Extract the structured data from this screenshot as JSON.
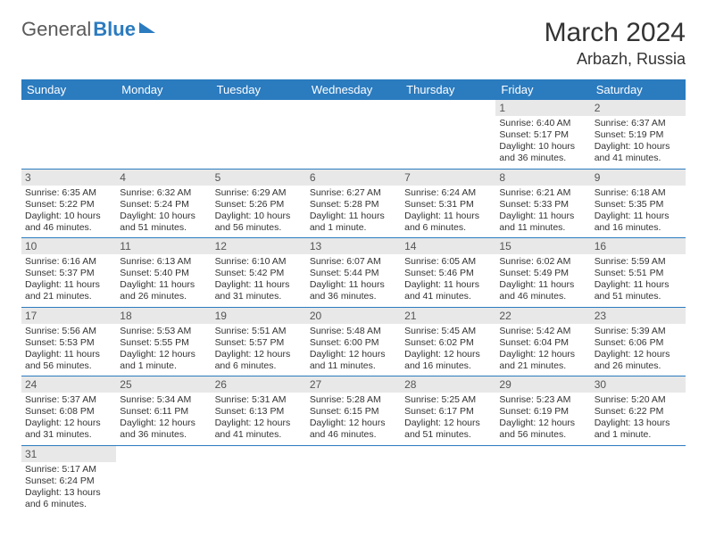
{
  "logo": {
    "part1": "General",
    "part2": "Blue"
  },
  "header": {
    "title": "March 2024",
    "location": "Arbazh, Russia"
  },
  "colors": {
    "header_bg": "#2b7bbf",
    "header_text": "#ffffff",
    "daynum_bg": "#e8e8e8",
    "border": "#2b7bbf",
    "text": "#333333",
    "logo_gray": "#5a5a5a",
    "logo_blue": "#2b7bbf"
  },
  "weekdays": [
    "Sunday",
    "Monday",
    "Tuesday",
    "Wednesday",
    "Thursday",
    "Friday",
    "Saturday"
  ],
  "weeks": [
    [
      null,
      null,
      null,
      null,
      null,
      {
        "n": "1",
        "sr": "Sunrise: 6:40 AM",
        "ss": "Sunset: 5:17 PM",
        "dl": "Daylight: 10 hours and 36 minutes."
      },
      {
        "n": "2",
        "sr": "Sunrise: 6:37 AM",
        "ss": "Sunset: 5:19 PM",
        "dl": "Daylight: 10 hours and 41 minutes."
      }
    ],
    [
      {
        "n": "3",
        "sr": "Sunrise: 6:35 AM",
        "ss": "Sunset: 5:22 PM",
        "dl": "Daylight: 10 hours and 46 minutes."
      },
      {
        "n": "4",
        "sr": "Sunrise: 6:32 AM",
        "ss": "Sunset: 5:24 PM",
        "dl": "Daylight: 10 hours and 51 minutes."
      },
      {
        "n": "5",
        "sr": "Sunrise: 6:29 AM",
        "ss": "Sunset: 5:26 PM",
        "dl": "Daylight: 10 hours and 56 minutes."
      },
      {
        "n": "6",
        "sr": "Sunrise: 6:27 AM",
        "ss": "Sunset: 5:28 PM",
        "dl": "Daylight: 11 hours and 1 minute."
      },
      {
        "n": "7",
        "sr": "Sunrise: 6:24 AM",
        "ss": "Sunset: 5:31 PM",
        "dl": "Daylight: 11 hours and 6 minutes."
      },
      {
        "n": "8",
        "sr": "Sunrise: 6:21 AM",
        "ss": "Sunset: 5:33 PM",
        "dl": "Daylight: 11 hours and 11 minutes."
      },
      {
        "n": "9",
        "sr": "Sunrise: 6:18 AM",
        "ss": "Sunset: 5:35 PM",
        "dl": "Daylight: 11 hours and 16 minutes."
      }
    ],
    [
      {
        "n": "10",
        "sr": "Sunrise: 6:16 AM",
        "ss": "Sunset: 5:37 PM",
        "dl": "Daylight: 11 hours and 21 minutes."
      },
      {
        "n": "11",
        "sr": "Sunrise: 6:13 AM",
        "ss": "Sunset: 5:40 PM",
        "dl": "Daylight: 11 hours and 26 minutes."
      },
      {
        "n": "12",
        "sr": "Sunrise: 6:10 AM",
        "ss": "Sunset: 5:42 PM",
        "dl": "Daylight: 11 hours and 31 minutes."
      },
      {
        "n": "13",
        "sr": "Sunrise: 6:07 AM",
        "ss": "Sunset: 5:44 PM",
        "dl": "Daylight: 11 hours and 36 minutes."
      },
      {
        "n": "14",
        "sr": "Sunrise: 6:05 AM",
        "ss": "Sunset: 5:46 PM",
        "dl": "Daylight: 11 hours and 41 minutes."
      },
      {
        "n": "15",
        "sr": "Sunrise: 6:02 AM",
        "ss": "Sunset: 5:49 PM",
        "dl": "Daylight: 11 hours and 46 minutes."
      },
      {
        "n": "16",
        "sr": "Sunrise: 5:59 AM",
        "ss": "Sunset: 5:51 PM",
        "dl": "Daylight: 11 hours and 51 minutes."
      }
    ],
    [
      {
        "n": "17",
        "sr": "Sunrise: 5:56 AM",
        "ss": "Sunset: 5:53 PM",
        "dl": "Daylight: 11 hours and 56 minutes."
      },
      {
        "n": "18",
        "sr": "Sunrise: 5:53 AM",
        "ss": "Sunset: 5:55 PM",
        "dl": "Daylight: 12 hours and 1 minute."
      },
      {
        "n": "19",
        "sr": "Sunrise: 5:51 AM",
        "ss": "Sunset: 5:57 PM",
        "dl": "Daylight: 12 hours and 6 minutes."
      },
      {
        "n": "20",
        "sr": "Sunrise: 5:48 AM",
        "ss": "Sunset: 6:00 PM",
        "dl": "Daylight: 12 hours and 11 minutes."
      },
      {
        "n": "21",
        "sr": "Sunrise: 5:45 AM",
        "ss": "Sunset: 6:02 PM",
        "dl": "Daylight: 12 hours and 16 minutes."
      },
      {
        "n": "22",
        "sr": "Sunrise: 5:42 AM",
        "ss": "Sunset: 6:04 PM",
        "dl": "Daylight: 12 hours and 21 minutes."
      },
      {
        "n": "23",
        "sr": "Sunrise: 5:39 AM",
        "ss": "Sunset: 6:06 PM",
        "dl": "Daylight: 12 hours and 26 minutes."
      }
    ],
    [
      {
        "n": "24",
        "sr": "Sunrise: 5:37 AM",
        "ss": "Sunset: 6:08 PM",
        "dl": "Daylight: 12 hours and 31 minutes."
      },
      {
        "n": "25",
        "sr": "Sunrise: 5:34 AM",
        "ss": "Sunset: 6:11 PM",
        "dl": "Daylight: 12 hours and 36 minutes."
      },
      {
        "n": "26",
        "sr": "Sunrise: 5:31 AM",
        "ss": "Sunset: 6:13 PM",
        "dl": "Daylight: 12 hours and 41 minutes."
      },
      {
        "n": "27",
        "sr": "Sunrise: 5:28 AM",
        "ss": "Sunset: 6:15 PM",
        "dl": "Daylight: 12 hours and 46 minutes."
      },
      {
        "n": "28",
        "sr": "Sunrise: 5:25 AM",
        "ss": "Sunset: 6:17 PM",
        "dl": "Daylight: 12 hours and 51 minutes."
      },
      {
        "n": "29",
        "sr": "Sunrise: 5:23 AM",
        "ss": "Sunset: 6:19 PM",
        "dl": "Daylight: 12 hours and 56 minutes."
      },
      {
        "n": "30",
        "sr": "Sunrise: 5:20 AM",
        "ss": "Sunset: 6:22 PM",
        "dl": "Daylight: 13 hours and 1 minute."
      }
    ],
    [
      {
        "n": "31",
        "sr": "Sunrise: 5:17 AM",
        "ss": "Sunset: 6:24 PM",
        "dl": "Daylight: 13 hours and 6 minutes."
      },
      null,
      null,
      null,
      null,
      null,
      null
    ]
  ]
}
